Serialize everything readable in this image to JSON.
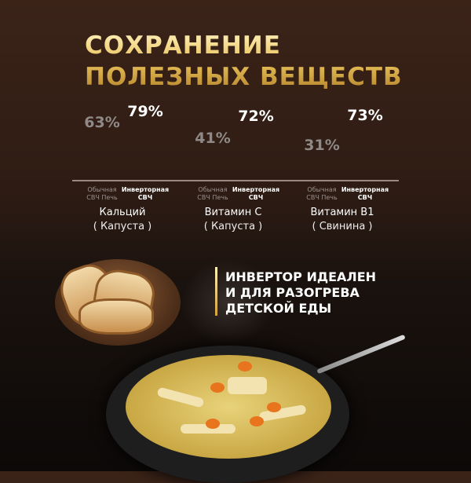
{
  "title": {
    "line1": "СОХРАНЕНИЕ",
    "line2": "ПОЛЕЗНЫХ ВЕЩЕСТВ"
  },
  "chart_data": {
    "type": "bar",
    "categories": [
      {
        "name": "Кальций",
        "source": "( Капуста )"
      },
      {
        "name": "Витамин С",
        "source": "( Капуста )"
      },
      {
        "name": "Витамин В1",
        "source": "( Свинина )"
      }
    ],
    "series": [
      {
        "name": "Обычная СВЧ Печь",
        "label_line1": "Обычная",
        "label_line2": "СВЧ Печь",
        "color": "#4a4644",
        "values": [
          63,
          41,
          31
        ],
        "labels": [
          "63%",
          "41%",
          "31%"
        ]
      },
      {
        "name": "Инверторная СВЧ",
        "label_line1": "Инверторная",
        "label_line2": "СВЧ",
        "color": "#e3b34a",
        "values": [
          79,
          72,
          73
        ],
        "labels": [
          "79%",
          "72%",
          "73%"
        ]
      }
    ],
    "unit": "%"
  },
  "slogan": {
    "line1": "ИНВЕРТОР ИДЕАЛЕН",
    "line2": "И ДЛЯ РАЗОГРЕВА",
    "line3": "ДЕТСКОЙ ЕДЫ"
  }
}
